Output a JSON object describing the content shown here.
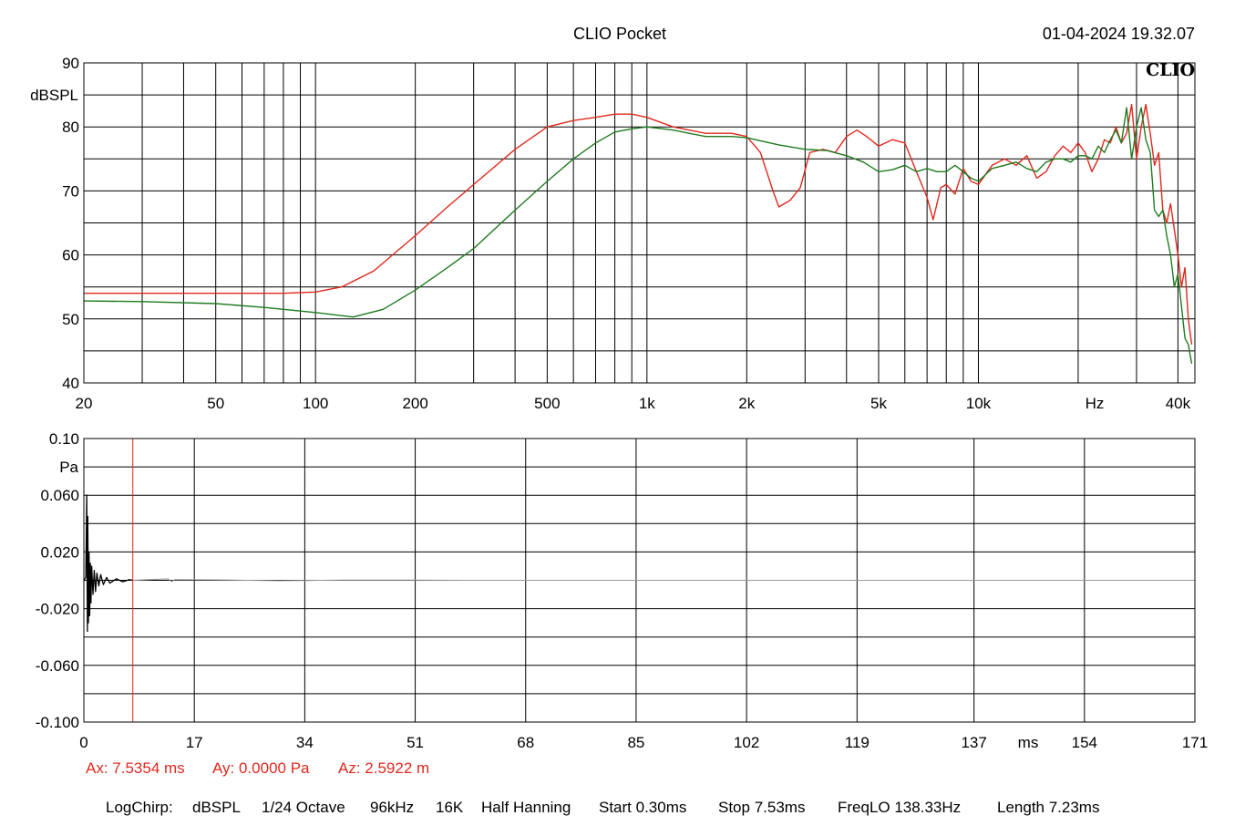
{
  "header": {
    "app_title": "CLIO Pocket",
    "timestamp": "01-04-2024 19.32.07",
    "logo_text": "CLIO"
  },
  "cursor_readout": {
    "ax": "Ax: 7.5354 ms",
    "ay": "Ay: 0.0000 Pa",
    "az": "Az: 2.5922 m"
  },
  "footer": {
    "items": [
      "LogChirp:",
      "dBSPL",
      "1/24 Octave",
      "96kHz",
      "16K",
      "Half Hanning",
      "Start 0.30ms",
      "Stop 7.53ms",
      "FreqLO 138.33Hz",
      "Length 7.23ms"
    ]
  },
  "chart_data": [
    {
      "type": "line",
      "x_scale": "log",
      "xlim": [
        20,
        45000
      ],
      "ylim": [
        40,
        90
      ],
      "ylabel": "dBSPL",
      "xunit": "Hz",
      "x_ticks": [
        {
          "value": 20,
          "label": "20"
        },
        {
          "value": 50,
          "label": "50"
        },
        {
          "value": 100,
          "label": "100"
        },
        {
          "value": 200,
          "label": "200"
        },
        {
          "value": 500,
          "label": "500"
        },
        {
          "value": 1000,
          "label": "1k"
        },
        {
          "value": 2000,
          "label": "2k"
        },
        {
          "value": 5000,
          "label": "5k"
        },
        {
          "value": 10000,
          "label": "10k"
        },
        {
          "value": 40000,
          "label": "40k"
        }
      ],
      "y_ticks": [
        {
          "value": 90,
          "label": "90"
        },
        {
          "value": 80,
          "label": "80"
        },
        {
          "value": 70,
          "label": "70"
        },
        {
          "value": 60,
          "label": "60"
        },
        {
          "value": 50,
          "label": "50"
        },
        {
          "value": 40,
          "label": "40"
        }
      ],
      "grid": true,
      "series": [
        {
          "color": "#e0281e",
          "x": [
            20,
            40,
            60,
            80,
            100,
            120,
            150,
            200,
            250,
            300,
            400,
            500,
            600,
            700,
            800,
            900,
            1000,
            1200,
            1500,
            1800,
            2000,
            2200,
            2400,
            2500,
            2700,
            2900,
            3100,
            3400,
            3700,
            4000,
            4300,
            4600,
            5000,
            5500,
            6000,
            6500,
            7000,
            7300,
            7700,
            8000,
            8500,
            9000,
            9500,
            10000,
            11000,
            12000,
            13000,
            14000,
            15000,
            16000,
            17000,
            18000,
            19000,
            20000,
            21000,
            22000,
            23000,
            24000,
            25000,
            26000,
            27000,
            28000,
            29000,
            30000,
            31000,
            32000,
            33000,
            34000,
            35000,
            36000,
            37000,
            38000,
            39000,
            40000,
            41000,
            42000,
            43000,
            44000
          ],
          "y": [
            54,
            54,
            54,
            54,
            54.2,
            55,
            57.5,
            63,
            67.5,
            71,
            76.5,
            80,
            81,
            81.5,
            82,
            82,
            81.5,
            80,
            79,
            79,
            78.5,
            76,
            70,
            67.5,
            68.5,
            70.5,
            76,
            76.5,
            76,
            78.5,
            79.5,
            78.5,
            77,
            78,
            77.5,
            73,
            69,
            65.5,
            70.5,
            71,
            69.5,
            73.5,
            71.5,
            71,
            74,
            75,
            74,
            75.5,
            72,
            73,
            75.5,
            77,
            76,
            77.5,
            76,
            73,
            75,
            78,
            77.5,
            80,
            77.5,
            79,
            83.5,
            75,
            80,
            83.5,
            79,
            74,
            76,
            67,
            65,
            68,
            64,
            60,
            55,
            58,
            50,
            46
          ]
        },
        {
          "color": "#1e7a1e",
          "x": [
            20,
            30,
            50,
            70,
            100,
            130,
            160,
            200,
            250,
            300,
            400,
            500,
            600,
            700,
            800,
            900,
            1000,
            1200,
            1500,
            1800,
            2000,
            2500,
            3000,
            3500,
            4000,
            4500,
            5000,
            5500,
            6000,
            6500,
            7000,
            7500,
            8000,
            8500,
            9000,
            9500,
            10000,
            11000,
            12000,
            13000,
            14000,
            15000,
            16000,
            17000,
            18000,
            19000,
            20000,
            21000,
            22000,
            23000,
            24000,
            25000,
            26000,
            27000,
            28000,
            29000,
            30000,
            31000,
            32000,
            33000,
            34000,
            35000,
            36000,
            37000,
            38000,
            39000,
            40000,
            41000,
            42000,
            43000,
            44000
          ],
          "y": [
            52.8,
            52.7,
            52.4,
            51.8,
            51,
            50.3,
            51.5,
            54.5,
            58,
            61,
            67,
            71.5,
            75,
            77.5,
            79.2,
            79.7,
            80,
            79.5,
            78.5,
            78.5,
            78.3,
            77.2,
            76.5,
            76.3,
            75.5,
            74.5,
            73,
            73.3,
            74,
            73,
            73.5,
            73,
            73,
            74,
            73,
            72,
            71.5,
            73.5,
            74,
            74.5,
            73.5,
            73,
            74.5,
            75,
            75,
            74.5,
            75.5,
            75.5,
            75,
            77,
            76,
            78,
            79.5,
            77.5,
            83,
            75,
            80,
            83,
            78,
            76,
            67,
            66,
            67,
            63,
            60,
            55,
            57,
            52,
            47,
            46,
            43
          ]
        }
      ]
    },
    {
      "type": "line",
      "xlim": [
        0,
        171
      ],
      "ylim": [
        -0.1,
        0.1
      ],
      "yunit": "Pa",
      "xunit": "ms",
      "x_ticks": [
        {
          "value": 0,
          "label": "0"
        },
        {
          "value": 17,
          "label": "17"
        },
        {
          "value": 34,
          "label": "34"
        },
        {
          "value": 51,
          "label": "51"
        },
        {
          "value": 68,
          "label": "68"
        },
        {
          "value": 85,
          "label": "85"
        },
        {
          "value": 102,
          "label": "102"
        },
        {
          "value": 119,
          "label": "119"
        },
        {
          "value": 137,
          "label": "137"
        },
        {
          "value": 154,
          "label": "154"
        },
        {
          "value": 171,
          "label": "171"
        }
      ],
      "y_ticks": [
        {
          "value": 0.1,
          "label": "0.10"
        },
        {
          "value": 0.06,
          "label": "0.060"
        },
        {
          "value": 0.02,
          "label": "0.020"
        },
        {
          "value": -0.02,
          "label": "-0.020"
        },
        {
          "value": -0.06,
          "label": "-0.060"
        },
        {
          "value": -0.1,
          "label": "-0.100"
        }
      ],
      "grid": true,
      "cursor_x": 7.5354,
      "cursor_color": "#e0281e",
      "series": [
        {
          "color": "#000000",
          "x": [
            0,
            0.3,
            0.45,
            0.55,
            0.6,
            0.7,
            0.8,
            0.9,
            1.0,
            1.1,
            1.2,
            1.4,
            1.6,
            1.8,
            2.0,
            2.3,
            2.6,
            3.0,
            3.5,
            4.0,
            5.0,
            6.0,
            7.0,
            7.5
          ],
          "y": [
            0,
            0.002,
            0.06,
            -0.036,
            0.045,
            -0.03,
            0.02,
            -0.025,
            0.012,
            -0.016,
            0.01,
            -0.01,
            0.007,
            -0.008,
            0.005,
            -0.004,
            0.004,
            -0.003,
            0.002,
            -0.002,
            0.001,
            -0.001,
            0.0005,
            0
          ]
        },
        {
          "color": "#999999",
          "x": [
            7.5,
            10,
            13,
            13.5,
            14,
            20,
            30,
            40,
            50,
            60,
            171
          ],
          "y": [
            0,
            0.0005,
            0.001,
            -0.001,
            0.0005,
            0.0003,
            -0.0003,
            0.0002,
            0.0002,
            0,
            0
          ]
        }
      ]
    }
  ]
}
